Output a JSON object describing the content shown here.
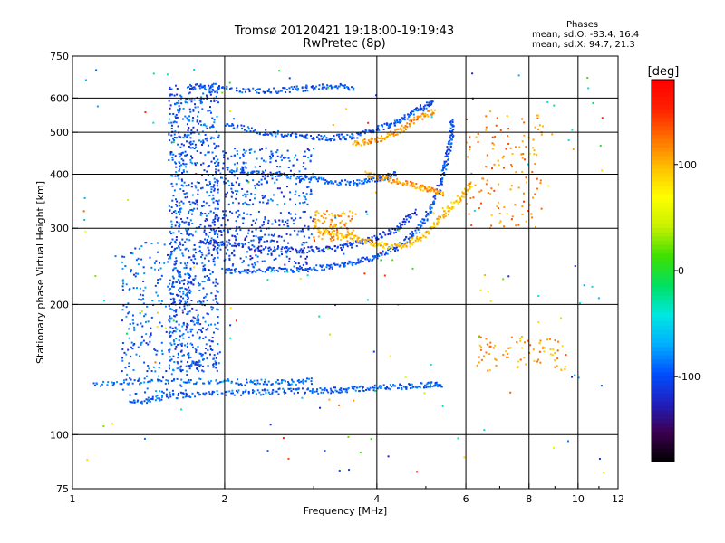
{
  "header": {
    "title": "Tromsø 20120421 19:18:00-19:19:43",
    "subtitle": "RwPretec (8p)",
    "stats_heading": "Phases",
    "stats_line1": "mean, sd,O: -83.4, 16.4",
    "stats_line2": "mean, sd,X:  94.7, 21.3"
  },
  "colorbar": {
    "unit_label": "[deg]",
    "ticks": [
      {
        "value": 100,
        "label": "100"
      },
      {
        "value": 0,
        "label": "0"
      },
      {
        "value": -100,
        "label": "-100"
      }
    ],
    "range": [
      -180,
      180
    ],
    "colors": [
      "#000000",
      "#3c0050",
      "#2020c0",
      "#0050ff",
      "#00b0ff",
      "#00e8e0",
      "#00e060",
      "#40e000",
      "#c8f000",
      "#ffff00",
      "#ffc000",
      "#ff7000",
      "#ff2000",
      "#ff0000"
    ]
  },
  "chart_data": {
    "type": "scatter",
    "title": "Tromsø 20120421 19:18:00-19:19:43",
    "subtitle": "RwPretec (8p)",
    "xlabel": "Frequency [MHz]",
    "ylabel": "Stationary phase Virtual Height [km]",
    "x_scale": "log",
    "y_scale": "log",
    "xlim": [
      1,
      12
    ],
    "ylim": [
      75,
      750
    ],
    "grid": true,
    "x_ticks": [
      {
        "value": 1,
        "label": "1"
      },
      {
        "value": 2,
        "label": "2"
      },
      {
        "value": 4,
        "label": "4"
      },
      {
        "value": 6,
        "label": "6"
      },
      {
        "value": 8,
        "label": "8"
      },
      {
        "value": 10,
        "label": "10"
      },
      {
        "value": 12,
        "label": "12"
      }
    ],
    "y_ticks": [
      {
        "value": 75,
        "label": "75"
      },
      {
        "value": 100,
        "label": "100"
      },
      {
        "value": 200,
        "label": "200"
      },
      {
        "value": 300,
        "label": "300"
      },
      {
        "value": 400,
        "label": "400"
      },
      {
        "value": 500,
        "label": "500"
      },
      {
        "value": 600,
        "label": "600"
      },
      {
        "value": 750,
        "label": "750"
      }
    ],
    "x_gridlines": [
      2,
      4,
      6,
      8,
      10
    ],
    "y_gridlines": [
      100,
      200,
      300,
      400,
      500,
      600
    ],
    "color_variable": "phase [deg]",
    "traces": [
      {
        "id": "o-F-trace",
        "phase": -100,
        "points": [
          [
            2.0,
            238
          ],
          [
            2.4,
            240
          ],
          [
            2.8,
            241
          ],
          [
            3.2,
            244
          ],
          [
            3.6,
            250
          ],
          [
            4.0,
            258
          ],
          [
            4.4,
            272
          ],
          [
            4.8,
            295
          ],
          [
            5.1,
            330
          ],
          [
            5.35,
            380
          ],
          [
            5.5,
            430
          ],
          [
            5.6,
            480
          ],
          [
            5.65,
            530
          ]
        ]
      },
      {
        "id": "o-F-trace-2",
        "phase": -110,
        "points": [
          [
            1.8,
            280
          ],
          [
            2.0,
            275
          ],
          [
            2.4,
            270
          ],
          [
            2.8,
            267
          ],
          [
            3.2,
            268
          ],
          [
            3.6,
            275
          ],
          [
            4.0,
            285
          ],
          [
            4.4,
            300
          ],
          [
            4.8,
            330
          ]
        ]
      },
      {
        "id": "x-F-trace",
        "phase": 95,
        "points": [
          [
            3.0,
            300
          ],
          [
            3.4,
            290
          ],
          [
            3.8,
            280
          ],
          [
            4.2,
            272
          ],
          [
            4.6,
            275
          ],
          [
            5.0,
            290
          ],
          [
            5.4,
            320
          ],
          [
            5.8,
            350
          ],
          [
            6.2,
            380
          ]
        ]
      },
      {
        "id": "E-trace",
        "phase": -95,
        "points": [
          [
            1.3,
            118
          ],
          [
            1.5,
            122
          ],
          [
            1.8,
            124
          ],
          [
            2.2,
            125
          ],
          [
            2.6,
            126
          ],
          [
            3.0,
            126
          ],
          [
            3.4,
            127
          ],
          [
            3.8,
            128
          ],
          [
            4.4,
            129
          ],
          [
            5.0,
            130
          ],
          [
            5.4,
            131
          ]
        ]
      },
      {
        "id": "E-trace-2",
        "phase": -90,
        "points": [
          [
            1.1,
            130
          ],
          [
            1.4,
            133
          ],
          [
            1.8,
            133
          ],
          [
            2.2,
            132
          ],
          [
            2.6,
            132
          ],
          [
            3.0,
            133
          ]
        ]
      },
      {
        "id": "spread-F-upper",
        "phase": -100,
        "points": [
          [
            2.0,
            520
          ],
          [
            2.4,
            500
          ],
          [
            2.8,
            490
          ],
          [
            3.2,
            485
          ],
          [
            3.6,
            490
          ],
          [
            4.0,
            510
          ],
          [
            4.4,
            530
          ],
          [
            4.8,
            560
          ],
          [
            5.2,
            590
          ]
        ]
      },
      {
        "id": "spread-F-upper-x",
        "phase": 110,
        "points": [
          [
            3.6,
            470
          ],
          [
            4.0,
            480
          ],
          [
            4.4,
            500
          ],
          [
            4.8,
            540
          ],
          [
            5.2,
            560
          ]
        ]
      },
      {
        "id": "top-band",
        "phase": -100,
        "points": [
          [
            1.7,
            640
          ],
          [
            2.0,
            630
          ],
          [
            2.4,
            620
          ],
          [
            2.8,
            630
          ],
          [
            3.2,
            640
          ],
          [
            3.6,
            635
          ]
        ]
      },
      {
        "id": "mid-band",
        "phase": -95,
        "points": [
          [
            2.0,
            410
          ],
          [
            2.4,
            400
          ],
          [
            2.8,
            395
          ],
          [
            3.2,
            385
          ],
          [
            3.6,
            380
          ],
          [
            4.0,
            390
          ],
          [
            4.4,
            400
          ]
        ]
      },
      {
        "id": "x-mid-band",
        "phase": 110,
        "points": [
          [
            3.8,
            400
          ],
          [
            4.2,
            390
          ],
          [
            4.6,
            380
          ],
          [
            5.0,
            370
          ],
          [
            5.4,
            360
          ]
        ]
      }
    ],
    "clouds": [
      {
        "id": "vertical-spread-1.7MHz",
        "phase": -100,
        "xrange": [
          1.55,
          1.95
        ],
        "yrange": [
          140,
          650
        ],
        "count": 900
      },
      {
        "id": "low-spread",
        "phase": -95,
        "xrange": [
          1.25,
          1.7
        ],
        "yrange": [
          120,
          280
        ],
        "count": 260
      },
      {
        "id": "bottomside-F",
        "phase": -105,
        "xrange": [
          1.9,
          3.0
        ],
        "yrange": [
          240,
          330
        ],
        "count": 260
      },
      {
        "id": "mid-F-cloud",
        "phase": -100,
        "xrange": [
          1.9,
          3.0
        ],
        "yrange": [
          340,
          460
        ],
        "count": 240
      },
      {
        "id": "x-cloud-300",
        "phase": 110,
        "xrange": [
          3.0,
          3.6
        ],
        "yrange": [
          280,
          330
        ],
        "count": 90
      },
      {
        "id": "x-cloud-high",
        "phase": 120,
        "xrange": [
          6.0,
          8.6
        ],
        "yrange": [
          300,
          560
        ],
        "count": 130
      },
      {
        "id": "x-cloud-low",
        "phase": 110,
        "xrange": [
          6.3,
          9.5
        ],
        "yrange": [
          140,
          170
        ],
        "count": 80
      },
      {
        "id": "sparse-noise",
        "phase": 0,
        "xrange": [
          1.05,
          11.5
        ],
        "yrange": [
          80,
          700
        ],
        "count": 160
      }
    ]
  }
}
